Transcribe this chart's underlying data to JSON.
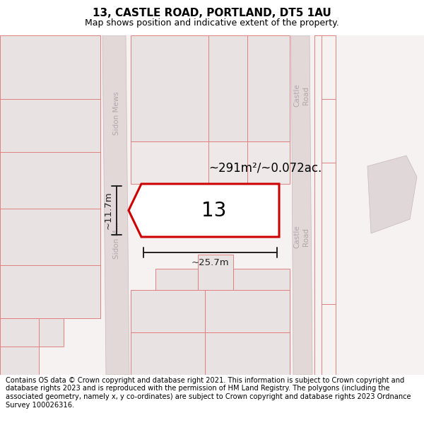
{
  "title": "13, CASTLE ROAD, PORTLAND, DT5 1AU",
  "subtitle": "Map shows position and indicative extent of the property.",
  "footer": "Contains OS data © Crown copyright and database right 2021. This information is subject to Crown copyright and database rights 2023 and is reproduced with the permission of HM Land Registry. The polygons (including the associated geometry, namely x, y co-ordinates) are subject to Crown copyright and database rights 2023 Ordnance Survey 100026316.",
  "area_label": "~291m²/~0.072ac.",
  "number_label": "13",
  "width_label": "~25.7m",
  "height_label": "~11.7m",
  "map_bg": "#f7f2f2",
  "road_fill": "#e2d8d8",
  "block_fill": "#e8e2e2",
  "block_edge": "none",
  "red_outline": "#e08080",
  "highlight_red": "#cc0000",
  "label_gray": "#b0a8a8",
  "dim_black": "#222222"
}
